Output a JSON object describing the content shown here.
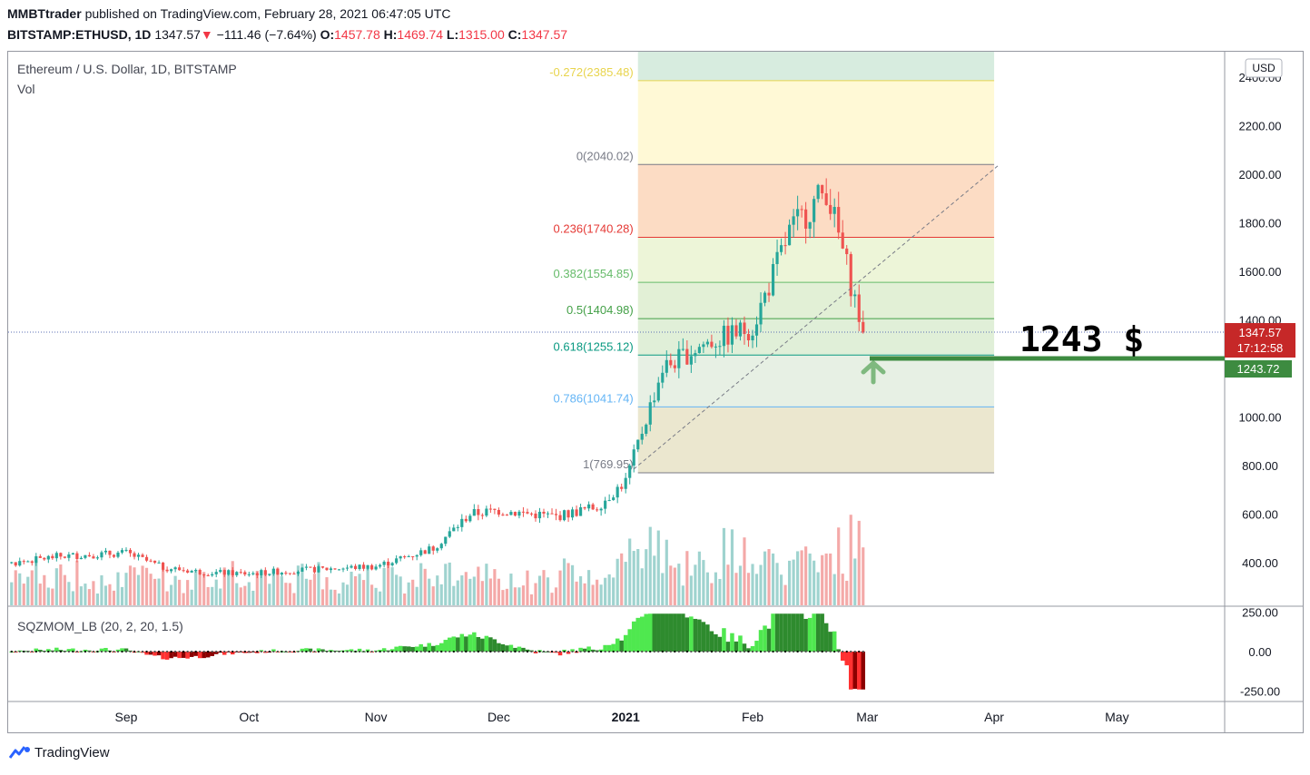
{
  "header": {
    "author": "MMBTtrader",
    "published": "published on TradingView.com, February 28, 2021 06:47:05 UTC",
    "symbol": "BITSTAMP:ETHUSD, 1D",
    "last": "1347.57",
    "arrow": "▼",
    "change": "−111.46 (−7.64%)",
    "o_label": "O:",
    "o": "1457.78",
    "h_label": "H:",
    "h": "1469.74",
    "l_label": "L:",
    "l": "1315.00",
    "c_label": "C:",
    "c": "1347.57"
  },
  "legend": {
    "title": "Ethereum / U.S. Dollar, 1D, BITSTAMP",
    "vol": "Vol",
    "indicator": "SQZMOM_LB (20, 2, 20, 1.5)"
  },
  "colors": {
    "up": "#26a69a",
    "down": "#ef5350",
    "vol_up": "#9fd3cf",
    "vol_down": "#f4a9a8",
    "mom_lime": "#4fe84f",
    "mom_green": "#2e8b2e",
    "mom_red": "#ff3131",
    "mom_maroon": "#8b0000",
    "target": "#3d8b40"
  },
  "annotation": {
    "label": "1243 $",
    "price_tag": "1243.72",
    "arrow_icon": "up-arrow-icon"
  },
  "price_tags": {
    "last": "1347.57",
    "countdown": "17:12:58"
  },
  "footer": {
    "brand": "TradingView",
    "logo_icon": "tradingview-logo-icon"
  },
  "chart_data": {
    "type": "candlestick",
    "currency": "USD",
    "y_ticks": [
      "2400.00",
      "2200.00",
      "2000.00",
      "1800.00",
      "1600.00",
      "1400.00",
      "1000.00",
      "800.00",
      "600.00",
      "400.00"
    ],
    "x_ticks": [
      {
        "label": "Sep",
        "date": "2020-09-01"
      },
      {
        "label": "Oct",
        "date": "2020-10-01"
      },
      {
        "label": "Nov",
        "date": "2020-11-01"
      },
      {
        "label": "Dec",
        "date": "2020-12-01"
      },
      {
        "label": "2021",
        "date": "2021-01-01",
        "bold": true
      },
      {
        "label": "Feb",
        "date": "2021-02-01"
      },
      {
        "label": "Mar",
        "date": "2021-03-01"
      },
      {
        "label": "Apr",
        "date": "2021-04-01"
      },
      {
        "label": "May",
        "date": "2021-05-01"
      }
    ],
    "fibonacci": [
      {
        "ratio": "-0.272",
        "price": 2385.48,
        "label": "-0.272(2385.48)",
        "color": "#e8d44d"
      },
      {
        "ratio": "0",
        "price": 2040.02,
        "label": "0(2040.02)",
        "color": "#787b86"
      },
      {
        "ratio": "0.236",
        "price": 1740.28,
        "label": "0.236(1740.28)",
        "color": "#e53935"
      },
      {
        "ratio": "0.382",
        "price": 1554.85,
        "label": "0.382(1554.85)",
        "color": "#66bb6a"
      },
      {
        "ratio": "0.5",
        "price": 1404.98,
        "label": "0.5(1404.98)",
        "color": "#43a047"
      },
      {
        "ratio": "0.618",
        "price": 1255.12,
        "label": "0.618(1255.12)",
        "color": "#089981"
      },
      {
        "ratio": "0.786",
        "price": 1041.74,
        "label": "0.786(1041.74)",
        "color": "#64b5f6"
      },
      {
        "ratio": "1",
        "price": 769.95,
        "label": "1(769.95)",
        "color": "#787b86"
      }
    ],
    "fib_start_date": "2021-01-04",
    "fib_end_date": "2021-04-01",
    "target_price": 1243.72,
    "last_price": 1347.57,
    "momentum_ticks": [
      "250.00",
      "0.00",
      "-250.00"
    ],
    "monthly_close": [
      {
        "date": "2020-08-01",
        "price": 390
      },
      {
        "date": "2020-08-15",
        "price": 425
      },
      {
        "date": "2020-09-01",
        "price": 440
      },
      {
        "date": "2020-09-10",
        "price": 380
      },
      {
        "date": "2020-09-20",
        "price": 360
      },
      {
        "date": "2020-10-01",
        "price": 355
      },
      {
        "date": "2020-10-15",
        "price": 370
      },
      {
        "date": "2020-11-01",
        "price": 385
      },
      {
        "date": "2020-11-15",
        "price": 460
      },
      {
        "date": "2020-11-24",
        "price": 600
      },
      {
        "date": "2020-12-01",
        "price": 615
      },
      {
        "date": "2020-12-15",
        "price": 590
      },
      {
        "date": "2020-12-25",
        "price": 630
      },
      {
        "date": "2021-01-01",
        "price": 735
      },
      {
        "date": "2021-01-10",
        "price": 1200
      },
      {
        "date": "2021-01-20",
        "price": 1300
      },
      {
        "date": "2021-02-01",
        "price": 1370
      },
      {
        "date": "2021-02-10",
        "price": 1760
      },
      {
        "date": "2021-02-19",
        "price": 1940
      },
      {
        "date": "2021-02-24",
        "price": 1620
      },
      {
        "date": "2021-02-28",
        "price": 1347.57
      }
    ]
  }
}
